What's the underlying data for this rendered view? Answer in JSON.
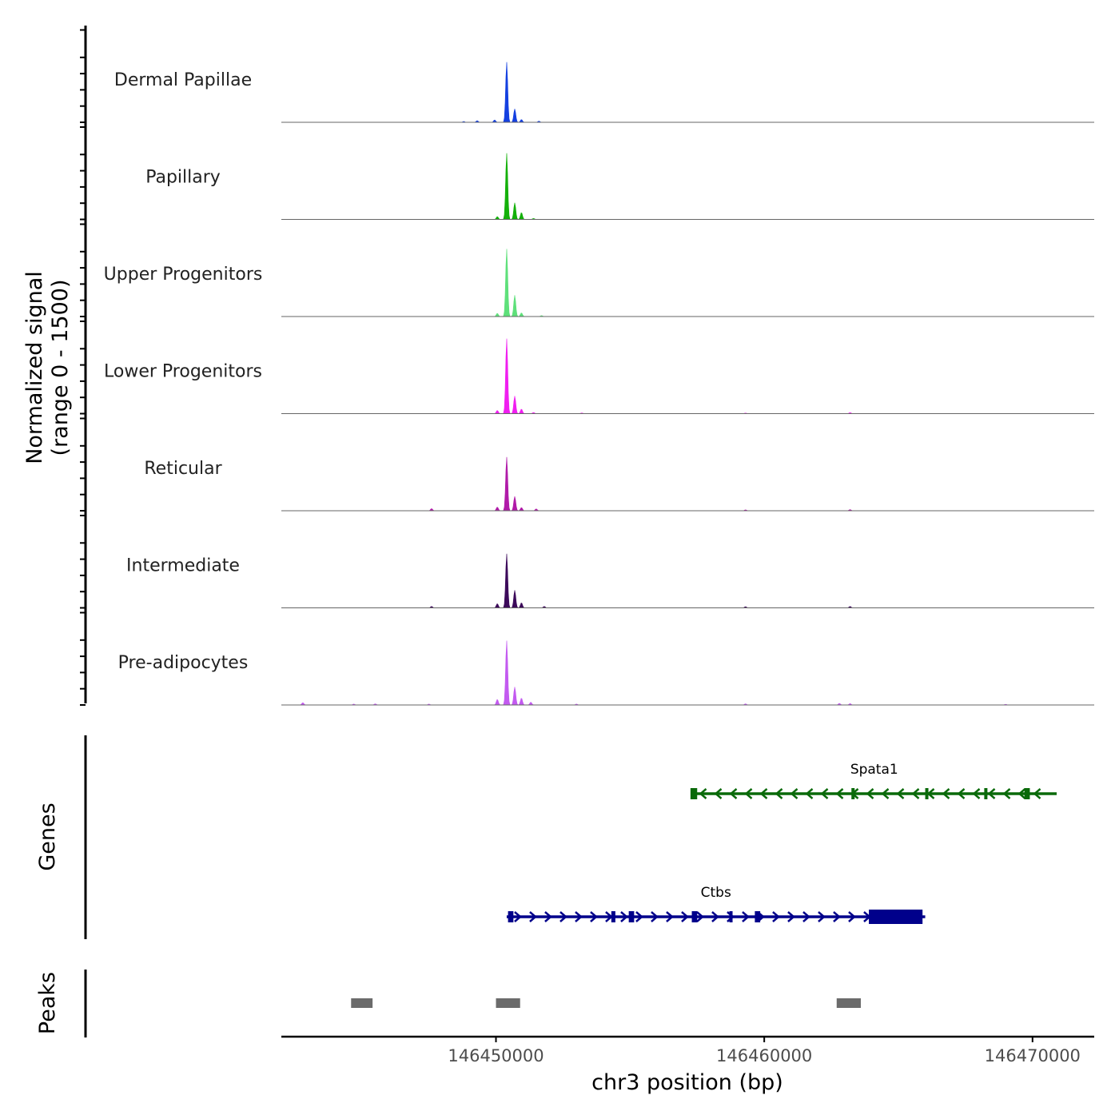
{
  "chart_data": {
    "type": "area",
    "chromosome": "chr3",
    "xlim": [
      146442000,
      146472300
    ],
    "signal_range": [
      0,
      1500
    ],
    "ylabel_line1": "Normalized signal",
    "ylabel_line2": "(range 0 - 1500)",
    "xlabel": "chr3 position (bp)",
    "x_ticks": [
      146450000,
      146460000,
      146470000
    ],
    "x_tick_labels": [
      "146450000",
      "146460000",
      "146470000"
    ],
    "genes_label": "Genes",
    "peaks_label": "Peaks",
    "tracks": [
      {
        "name": "Dermal Papillae",
        "color": "#1440e0",
        "peaks": [
          [
            146450400,
            1300
          ],
          [
            146450700,
            290
          ],
          [
            146450950,
            60
          ],
          [
            146451600,
            25
          ],
          [
            146449300,
            35
          ],
          [
            146449950,
            50
          ],
          [
            146448800,
            18
          ]
        ]
      },
      {
        "name": "Papillary",
        "color": "#14b00a",
        "peaks": [
          [
            146450400,
            1430
          ],
          [
            146450700,
            360
          ],
          [
            146450950,
            150
          ],
          [
            146450050,
            60
          ],
          [
            146451400,
            20
          ]
        ]
      },
      {
        "name": "Upper Progenitors",
        "color": "#5ee07a",
        "peaks": [
          [
            146450400,
            1460
          ],
          [
            146450700,
            460
          ],
          [
            146450950,
            80
          ],
          [
            146450050,
            70
          ],
          [
            146451700,
            20
          ]
        ]
      },
      {
        "name": "Lower Progenitors",
        "color": "#f01ef0",
        "peaks": [
          [
            146450400,
            1620
          ],
          [
            146450700,
            380
          ],
          [
            146450950,
            100
          ],
          [
            146450050,
            70
          ],
          [
            146451400,
            25
          ],
          [
            146453200,
            15
          ],
          [
            146463200,
            22
          ],
          [
            146459300,
            12
          ]
        ]
      },
      {
        "name": "Reticular",
        "color": "#b01aa8",
        "peaks": [
          [
            146450400,
            1160
          ],
          [
            146450700,
            310
          ],
          [
            146450950,
            70
          ],
          [
            146450050,
            80
          ],
          [
            146447600,
            45
          ],
          [
            146451500,
            40
          ],
          [
            146459300,
            20
          ],
          [
            146463200,
            25
          ]
        ]
      },
      {
        "name": "Intermediate",
        "color": "#3c0a5a",
        "peaks": [
          [
            146450400,
            1170
          ],
          [
            146450700,
            380
          ],
          [
            146450950,
            110
          ],
          [
            146450050,
            90
          ],
          [
            146447600,
            30
          ],
          [
            146451800,
            30
          ],
          [
            146459300,
            25
          ],
          [
            146463200,
            30
          ]
        ]
      },
      {
        "name": "Pre-adipocytes",
        "color": "#c35af0",
        "peaks": [
          [
            146450400,
            1390
          ],
          [
            146450700,
            390
          ],
          [
            146450950,
            150
          ],
          [
            146450050,
            120
          ],
          [
            146451300,
            60
          ],
          [
            146442800,
            50
          ],
          [
            146444700,
            20
          ],
          [
            146445500,
            25
          ],
          [
            146447500,
            20
          ],
          [
            146453000,
            20
          ],
          [
            146459300,
            25
          ],
          [
            146462800,
            35
          ],
          [
            146463200,
            30
          ],
          [
            146469000,
            15
          ]
        ]
      }
    ],
    "genes": [
      {
        "name": "Spata1",
        "color": "#0a6a0a",
        "strand": "-",
        "start": 146457300,
        "end": 146470900,
        "exons": [
          [
            146457250,
            146457500
          ],
          [
            146463250,
            146463350
          ],
          [
            146466000,
            146466100
          ],
          [
            146468200,
            146468300
          ],
          [
            146469700,
            146469900
          ]
        ]
      },
      {
        "name": "Ctbs",
        "color": "#00008b",
        "strand": "+",
        "start": 146450400,
        "end": 146466000,
        "exons": [
          [
            146450450,
            146450650
          ],
          [
            146454300,
            146454450
          ],
          [
            146454950,
            146455150
          ],
          [
            146457300,
            146457500
          ],
          [
            146458700,
            146458800
          ],
          [
            146459650,
            146459850
          ],
          [
            146463900,
            146465900
          ]
        ]
      }
    ],
    "peaks": [
      [
        146444600,
        146445400
      ],
      [
        146450000,
        146450900
      ],
      [
        146462700,
        146463600
      ]
    ]
  }
}
